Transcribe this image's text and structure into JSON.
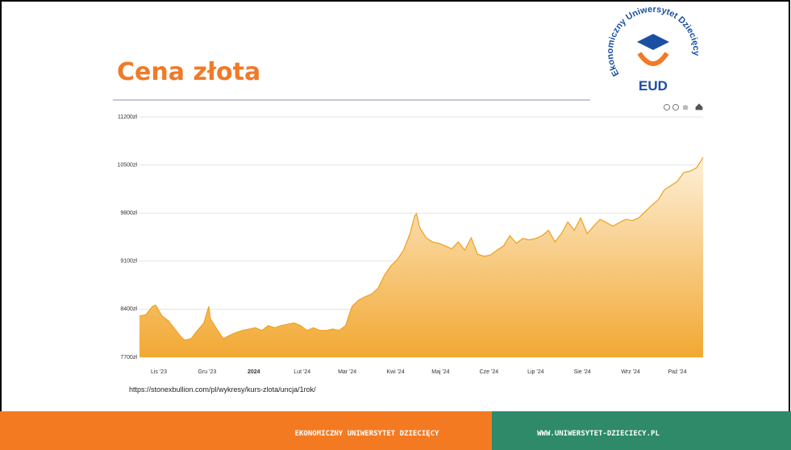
{
  "slide": {
    "title": "Cena złota",
    "source": "https://stonexbullion.com/pl/wykresy/kurs-zlota/uncja/1rok/",
    "logo": {
      "text": "Ekonomiczny Uniwersytet Dziecięcy",
      "abbr": "EUD"
    },
    "footer": {
      "left": "EKONOMICZNY UNIWERSYTET DZIECIĘCY",
      "right": "WWW.UNIWERSYTET-DZIECIECY.PL"
    }
  },
  "chart_data": {
    "type": "area",
    "grid": true,
    "xlim": [
      0,
      350
    ],
    "xticks": [
      {
        "value": 12,
        "label": "Lis '23"
      },
      {
        "value": 42,
        "label": "Gru '23"
      },
      {
        "value": 71,
        "label": "2024"
      },
      {
        "value": 101,
        "label": "Lut '24"
      },
      {
        "value": 129,
        "label": "Mar '24"
      },
      {
        "value": 159,
        "label": "Kwi '24"
      },
      {
        "value": 187,
        "label": "Maj '24"
      },
      {
        "value": 217,
        "label": "Cze '24"
      },
      {
        "value": 246,
        "label": "Lip '24"
      },
      {
        "value": 275,
        "label": "Sie '24"
      },
      {
        "value": 305,
        "label": "Wrz '24"
      },
      {
        "value": 334,
        "label": "Paź '24"
      }
    ],
    "ylim": [
      7700,
      11200
    ],
    "yticks": [
      {
        "value": 7700,
        "label": "7700zł"
      },
      {
        "value": 8400,
        "label": "8400zł"
      },
      {
        "value": 9100,
        "label": "9100zł"
      },
      {
        "value": 9800,
        "label": "9800zł"
      },
      {
        "value": 10500,
        "label": "10500zł"
      },
      {
        "value": 11200,
        "label": "11200zł"
      }
    ],
    "color": "#f0a428",
    "x": [
      0,
      4,
      8,
      10,
      14,
      18,
      22,
      26,
      28,
      32,
      36,
      40,
      43,
      44,
      48,
      52,
      56,
      60,
      64,
      68,
      72,
      76,
      80,
      84,
      88,
      92,
      96,
      100,
      104,
      108,
      112,
      116,
      120,
      124,
      128,
      132,
      136,
      140,
      144,
      148,
      152,
      156,
      160,
      164,
      168,
      171,
      172,
      174,
      178,
      182,
      186,
      190,
      194,
      198,
      202,
      206,
      210,
      214,
      218,
      222,
      226,
      230,
      234,
      238,
      242,
      246,
      250,
      254,
      258,
      262,
      266,
      270,
      274,
      278,
      282,
      286,
      290,
      294,
      298,
      302,
      306,
      310,
      314,
      318,
      322,
      326,
      330,
      334,
      338,
      342,
      346,
      350
    ],
    "values": [
      8300,
      8320,
      8440,
      8460,
      8300,
      8230,
      8110,
      7990,
      7950,
      7970,
      8090,
      8200,
      8440,
      8260,
      8110,
      7970,
      8020,
      8060,
      8090,
      8110,
      8130,
      8090,
      8160,
      8130,
      8160,
      8180,
      8200,
      8160,
      8090,
      8130,
      8090,
      8090,
      8110,
      8090,
      8160,
      8440,
      8530,
      8580,
      8620,
      8700,
      8890,
      9030,
      9120,
      9260,
      9500,
      9760,
      9790,
      9590,
      9440,
      9380,
      9360,
      9320,
      9280,
      9380,
      9260,
      9440,
      9200,
      9170,
      9190,
      9260,
      9320,
      9470,
      9360,
      9430,
      9410,
      9430,
      9470,
      9550,
      9380,
      9500,
      9670,
      9550,
      9730,
      9500,
      9610,
      9710,
      9660,
      9610,
      9660,
      9710,
      9690,
      9730,
      9820,
      9910,
      9990,
      10140,
      10200,
      10260,
      10390,
      10410,
      10460,
      10610
    ]
  }
}
